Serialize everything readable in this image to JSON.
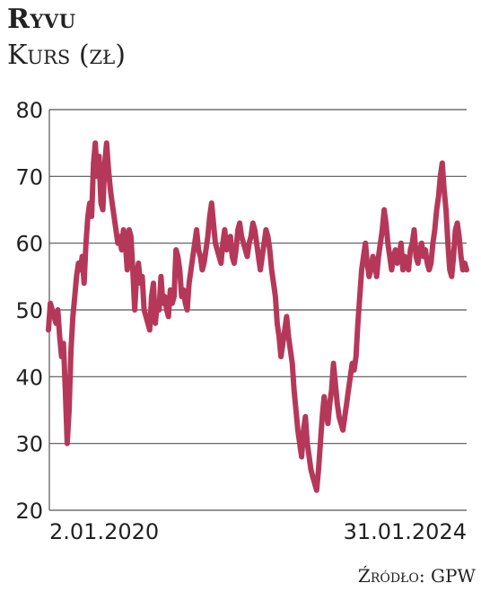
{
  "title": "Ryvu",
  "subtitle": "Kurs (zł)",
  "source": "Źródło: GPW",
  "chart_data": {
    "type": "line",
    "y_ticks": [
      20,
      30,
      40,
      50,
      60,
      70,
      80
    ],
    "ylim": [
      20,
      80
    ],
    "x_labels": [
      "2.01.2020",
      "31.01.2024"
    ],
    "grid": true,
    "line_color": "#b5385a",
    "series": [
      {
        "values": [
          47,
          51,
          50,
          49,
          48,
          50,
          46,
          43,
          45,
          38,
          30,
          35,
          44,
          49,
          52,
          55,
          57,
          56,
          58,
          54,
          60,
          64,
          66,
          64,
          72,
          75,
          70,
          73,
          66,
          65,
          72,
          75,
          71,
          68,
          66,
          64,
          62,
          60,
          61,
          59,
          62,
          60,
          56,
          62,
          61,
          56,
          50,
          55,
          57,
          54,
          55,
          50,
          49,
          48,
          47,
          52,
          54,
          48,
          51,
          50,
          55,
          51,
          52,
          50,
          49,
          53,
          51,
          52,
          59,
          58,
          56,
          52,
          53,
          51,
          50,
          54,
          56,
          58,
          60,
          62,
          59,
          58,
          56,
          57,
          59,
          61,
          64,
          66,
          63,
          60,
          59,
          58,
          57,
          60,
          62,
          59,
          60,
          61,
          58,
          57,
          59,
          62,
          63,
          61,
          60,
          59,
          58,
          60,
          61,
          63,
          62,
          60,
          58,
          56,
          58,
          60,
          62,
          61,
          59,
          56,
          54,
          52,
          48,
          46,
          43,
          45,
          47,
          49,
          46,
          44,
          42,
          38,
          35,
          32,
          30,
          28,
          32,
          34,
          30,
          28,
          26,
          25,
          24,
          23,
          26,
          30,
          34,
          37,
          35,
          33,
          36,
          38,
          42,
          39,
          36,
          34,
          33,
          32,
          34,
          36,
          38,
          40,
          42,
          41,
          43,
          48,
          52,
          56,
          58,
          60,
          57,
          55,
          56,
          58,
          57,
          55,
          58,
          60,
          62,
          65,
          63,
          60,
          58,
          56,
          58,
          59,
          57,
          58,
          60,
          56,
          58,
          57,
          56,
          59,
          60,
          62,
          58,
          57,
          59,
          60,
          58,
          59,
          57,
          56,
          57,
          60,
          62,
          65,
          67,
          70,
          72,
          68,
          65,
          60,
          56,
          55,
          58,
          62,
          63,
          61,
          58,
          56,
          57,
          56
        ]
      }
    ]
  }
}
